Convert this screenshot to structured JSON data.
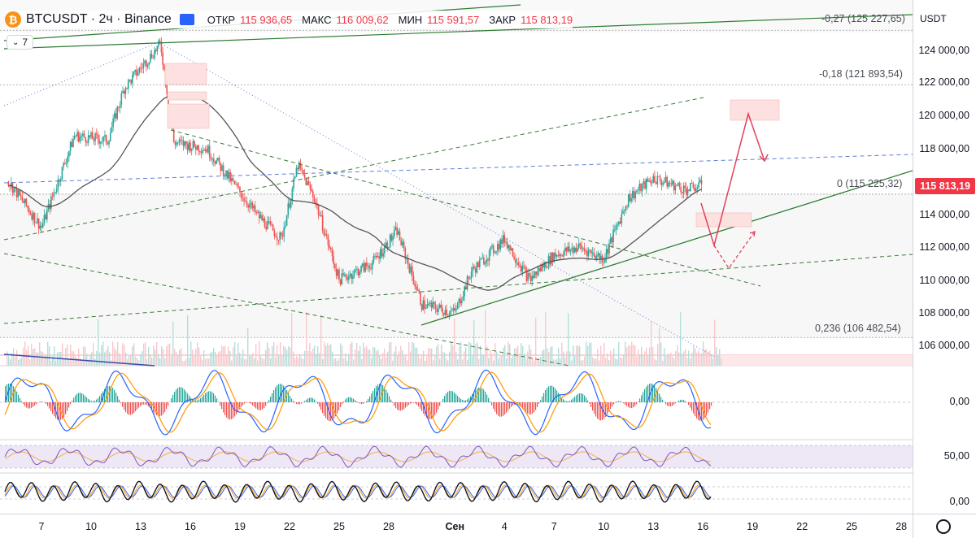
{
  "header": {
    "symbol": "BTCUSDT · 2ч · Binance",
    "logo_glyph": "₿",
    "open_label": "ОТКР",
    "open_value": "115 936,65",
    "high_label": "МАКС",
    "high_value": "116 009,62",
    "low_label": "МИН",
    "low_value": "115 591,57",
    "close_label": "ЗАКР",
    "close_value": "115 813,19",
    "indicators_toggle": "7",
    "indicators_icon": "chevron-down-icon"
  },
  "price_axis": {
    "unit": "USDT",
    "labels": [
      {
        "text": "124 000,00",
        "price": 124000
      },
      {
        "text": "122 000,00",
        "price": 122000
      },
      {
        "text": "120 000,00",
        "price": 120000
      },
      {
        "text": "118 000,00",
        "price": 118000
      },
      {
        "text": "114 000,00",
        "price": 114000
      },
      {
        "text": "112 000,00",
        "price": 112000
      },
      {
        "text": "110 000,00",
        "price": 110000
      },
      {
        "text": "108 000,00",
        "price": 108000
      },
      {
        "text": "106 000,00",
        "price": 106000
      }
    ],
    "last_price": "115 813,19",
    "last_price_value": 115813.19,
    "macd_zero": "0,00",
    "rsi_mid": "50,00",
    "stoch_zero": "0,00"
  },
  "fib_levels": [
    {
      "text": "-0,27 (125 227,65)",
      "price": 125227.65
    },
    {
      "text": "-0,18 (121 893,54)",
      "price": 121893.54
    },
    {
      "text": "0 (115 225,32)",
      "price": 115225.32
    },
    {
      "text": "0,236 (106 482,54)",
      "price": 106482.54
    }
  ],
  "time_axis": {
    "labels": [
      {
        "text": "7",
        "bold": false,
        "day": 7
      },
      {
        "text": "10",
        "bold": false,
        "day": 10
      },
      {
        "text": "13",
        "bold": false,
        "day": 13
      },
      {
        "text": "16",
        "bold": false,
        "day": 16
      },
      {
        "text": "19",
        "bold": false,
        "day": 19
      },
      {
        "text": "22",
        "bold": false,
        "day": 22
      },
      {
        "text": "25",
        "bold": false,
        "day": 25
      },
      {
        "text": "28",
        "bold": false,
        "day": 28
      },
      {
        "text": "Сен",
        "bold": true,
        "day": 32
      },
      {
        "text": "4",
        "bold": false,
        "day": 35
      },
      {
        "text": "7",
        "bold": false,
        "day": 38
      },
      {
        "text": "10",
        "bold": false,
        "day": 41
      },
      {
        "text": "13",
        "bold": false,
        "day": 44
      },
      {
        "text": "16",
        "bold": false,
        "day": 47
      },
      {
        "text": "19",
        "bold": false,
        "day": 50
      },
      {
        "text": "22",
        "bold": false,
        "day": 53
      },
      {
        "text": "25",
        "bold": false,
        "day": 56
      },
      {
        "text": "28",
        "bold": false,
        "day": 59
      }
    ],
    "settings_icon": "gear-icon"
  },
  "colors": {
    "up": "#26a69a",
    "down": "#ef5350",
    "ma": "#555555",
    "trend_green": "#2e7d32",
    "dash_green": "#3c7a3c",
    "dash_blue": "#5b7fd6",
    "projection": "#e0425a",
    "macd": "#2962ff",
    "signal": "#ff9800",
    "rsi": "#7e57c2",
    "stoch_k": "#131722"
  },
  "chart_data": {
    "type": "candlestick",
    "title": "BTCUSDT · 2ч · Binance",
    "ylim": [
      105000,
      126000
    ],
    "x_range_days": [
      5,
      60
    ],
    "key_points": [
      {
        "day": 5,
        "price": 116000
      },
      {
        "day": 7,
        "price": 113200
      },
      {
        "day": 9,
        "price": 118800
      },
      {
        "day": 11,
        "price": 118500
      },
      {
        "day": 12,
        "price": 121700
      },
      {
        "day": 14.2,
        "price": 124400
      },
      {
        "day": 15,
        "price": 118400
      },
      {
        "day": 17,
        "price": 118000
      },
      {
        "day": 18.5,
        "price": 116000
      },
      {
        "day": 20,
        "price": 114000
      },
      {
        "day": 21.5,
        "price": 112500
      },
      {
        "day": 22.5,
        "price": 117000
      },
      {
        "day": 23.5,
        "price": 115000
      },
      {
        "day": 25,
        "price": 110000
      },
      {
        "day": 27,
        "price": 111000
      },
      {
        "day": 28.5,
        "price": 113000
      },
      {
        "day": 30,
        "price": 108500
      },
      {
        "day": 32,
        "price": 108000
      },
      {
        "day": 33,
        "price": 110500
      },
      {
        "day": 35,
        "price": 112500
      },
      {
        "day": 36.5,
        "price": 110000
      },
      {
        "day": 38,
        "price": 111500
      },
      {
        "day": 39.5,
        "price": 112000
      },
      {
        "day": 41,
        "price": 111300
      },
      {
        "day": 42.5,
        "price": 115000
      },
      {
        "day": 44,
        "price": 116200
      },
      {
        "day": 46,
        "price": 115500
      },
      {
        "day": 47,
        "price": 115813
      }
    ],
    "macd": "histogram with MACD and signal lines oscillating around 0,00",
    "rsi_reference": 50,
    "stochastic_reference": 0
  }
}
